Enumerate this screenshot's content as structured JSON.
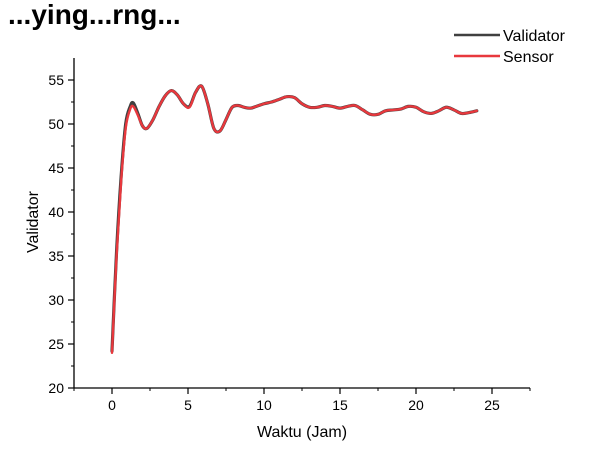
{
  "top_fragment": "...ying...rng...",
  "chart_data": {
    "type": "line",
    "title": "",
    "xlabel": "Waktu (Jam)",
    "ylabel": "Validator",
    "xlim": [
      -2.5,
      27.5
    ],
    "ylim": [
      20,
      57.5
    ],
    "xticks": [
      0,
      5,
      10,
      15,
      20,
      25
    ],
    "yticks": [
      20,
      25,
      30,
      35,
      40,
      45,
      50,
      55
    ],
    "grid": false,
    "legend_position": "top-right",
    "series": [
      {
        "name": "Validator",
        "color": "#404040",
        "x": [
          0,
          0.3,
          0.6,
          0.9,
          1.2,
          1.4,
          1.7,
          2.0,
          2.3,
          2.7,
          3.1,
          3.5,
          3.9,
          4.3,
          4.7,
          5.1,
          5.5,
          5.9,
          6.3,
          6.7,
          7.1,
          7.5,
          7.9,
          8.3,
          8.7,
          9.1,
          9.5,
          10.0,
          10.5,
          11.0,
          11.5,
          12.0,
          12.5,
          13.0,
          13.5,
          14.0,
          14.5,
          15.0,
          15.5,
          16.0,
          16.5,
          17.0,
          17.5,
          18.0,
          18.5,
          19.0,
          19.5,
          20.0,
          20.5,
          21.0,
          21.5,
          22.0,
          22.5,
          23.0,
          23.5,
          24.0
        ],
        "y": [
          24.2,
          35.5,
          44.0,
          50.0,
          52.0,
          52.4,
          51.2,
          49.8,
          49.5,
          50.5,
          52.0,
          53.2,
          53.8,
          53.3,
          52.3,
          52.0,
          53.6,
          54.3,
          52.3,
          49.5,
          49.2,
          50.5,
          51.9,
          52.1,
          51.9,
          51.8,
          52.0,
          52.3,
          52.5,
          52.8,
          53.1,
          53.0,
          52.3,
          51.9,
          51.9,
          52.1,
          52.0,
          51.8,
          52.0,
          52.1,
          51.6,
          51.1,
          51.1,
          51.5,
          51.6,
          51.7,
          52.0,
          51.9,
          51.4,
          51.2,
          51.5,
          51.9,
          51.6,
          51.2,
          51.3,
          51.5
        ]
      },
      {
        "name": "Sensor",
        "color": "#e8383d",
        "x": [
          0,
          0.3,
          0.6,
          0.9,
          1.2,
          1.4,
          1.7,
          2.0,
          2.3,
          2.7,
          3.1,
          3.5,
          3.9,
          4.3,
          4.7,
          5.1,
          5.5,
          5.9,
          6.3,
          6.7,
          7.1,
          7.5,
          7.9,
          8.3,
          8.7,
          9.1,
          9.5,
          10.0,
          10.5,
          11.0,
          11.5,
          12.0,
          12.5,
          13.0,
          13.5,
          14.0,
          14.5,
          15.0,
          15.5,
          16.0,
          16.5,
          17.0,
          17.5,
          18.0,
          18.5,
          19.0,
          19.5,
          20.0,
          20.5,
          21.0,
          21.5,
          22.0,
          22.5,
          23.0,
          23.5,
          24.0
        ],
        "y": [
          24.0,
          35.0,
          43.5,
          49.5,
          51.7,
          52.0,
          51.0,
          49.8,
          49.5,
          50.5,
          52.0,
          53.2,
          53.8,
          53.3,
          52.3,
          51.9,
          53.6,
          54.3,
          52.3,
          49.5,
          49.2,
          50.5,
          51.9,
          52.1,
          51.9,
          51.8,
          52.0,
          52.3,
          52.5,
          52.8,
          53.1,
          53.0,
          52.3,
          51.9,
          51.9,
          52.1,
          52.0,
          51.8,
          52.0,
          52.1,
          51.6,
          51.1,
          51.1,
          51.5,
          51.6,
          51.7,
          52.0,
          51.9,
          51.4,
          51.2,
          51.5,
          51.9,
          51.6,
          51.2,
          51.3,
          51.5
        ]
      }
    ]
  }
}
